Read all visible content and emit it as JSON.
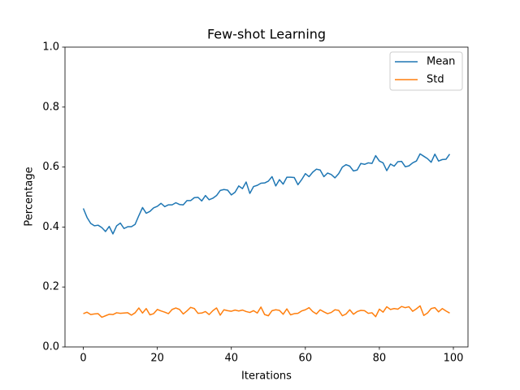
{
  "chart_data": {
    "type": "line",
    "title": "Few-shot Learning",
    "x_label": "Iterations",
    "y_label": "Percentage",
    "x": [
      0,
      1,
      2,
      3,
      4,
      5,
      6,
      7,
      8,
      9,
      10,
      11,
      12,
      13,
      14,
      15,
      16,
      17,
      18,
      19,
      20,
      21,
      22,
      23,
      24,
      25,
      26,
      27,
      28,
      29,
      30,
      31,
      32,
      33,
      34,
      35,
      36,
      37,
      38,
      39,
      40,
      41,
      42,
      43,
      44,
      45,
      46,
      47,
      48,
      49,
      50,
      51,
      52,
      53,
      54,
      55,
      56,
      57,
      58,
      59,
      60,
      61,
      62,
      63,
      64,
      65,
      66,
      67,
      68,
      69,
      70,
      71,
      72,
      73,
      74,
      75,
      76,
      77,
      78,
      79,
      80,
      81,
      82,
      83,
      84,
      85,
      86,
      87,
      88,
      89,
      90,
      91,
      92,
      93,
      94,
      95,
      96,
      97,
      98,
      99
    ],
    "series": [
      {
        "name": "Mean",
        "color": "#1f77b4",
        "values": [
          0.462,
          0.432,
          0.412,
          0.404,
          0.406,
          0.398,
          0.385,
          0.402,
          0.377,
          0.404,
          0.413,
          0.395,
          0.401,
          0.401,
          0.409,
          0.438,
          0.465,
          0.446,
          0.452,
          0.464,
          0.469,
          0.479,
          0.468,
          0.474,
          0.474,
          0.481,
          0.475,
          0.474,
          0.488,
          0.488,
          0.498,
          0.499,
          0.487,
          0.505,
          0.491,
          0.496,
          0.505,
          0.522,
          0.525,
          0.523,
          0.507,
          0.516,
          0.537,
          0.528,
          0.55,
          0.512,
          0.535,
          0.539,
          0.546,
          0.547,
          0.553,
          0.568,
          0.537,
          0.558,
          0.543,
          0.566,
          0.566,
          0.565,
          0.541,
          0.558,
          0.578,
          0.568,
          0.583,
          0.593,
          0.59,
          0.568,
          0.58,
          0.575,
          0.564,
          0.578,
          0.6,
          0.608,
          0.603,
          0.587,
          0.59,
          0.612,
          0.609,
          0.614,
          0.612,
          0.638,
          0.62,
          0.614,
          0.588,
          0.61,
          0.603,
          0.618,
          0.619,
          0.601,
          0.604,
          0.614,
          0.62,
          0.644,
          0.636,
          0.628,
          0.616,
          0.643,
          0.62,
          0.625,
          0.626,
          0.643
        ]
      },
      {
        "name": "Std",
        "color": "#ff7f0e",
        "values": [
          0.111,
          0.116,
          0.108,
          0.11,
          0.111,
          0.099,
          0.104,
          0.109,
          0.108,
          0.114,
          0.112,
          0.113,
          0.114,
          0.106,
          0.114,
          0.13,
          0.113,
          0.128,
          0.107,
          0.111,
          0.125,
          0.12,
          0.116,
          0.111,
          0.125,
          0.13,
          0.125,
          0.11,
          0.12,
          0.132,
          0.128,
          0.112,
          0.113,
          0.118,
          0.108,
          0.121,
          0.13,
          0.106,
          0.124,
          0.121,
          0.119,
          0.123,
          0.12,
          0.123,
          0.118,
          0.115,
          0.121,
          0.113,
          0.133,
          0.108,
          0.104,
          0.121,
          0.124,
          0.122,
          0.109,
          0.127,
          0.107,
          0.111,
          0.112,
          0.12,
          0.124,
          0.131,
          0.118,
          0.11,
          0.124,
          0.117,
          0.111,
          0.115,
          0.124,
          0.122,
          0.104,
          0.11,
          0.124,
          0.109,
          0.118,
          0.122,
          0.121,
          0.112,
          0.114,
          0.101,
          0.126,
          0.116,
          0.134,
          0.125,
          0.128,
          0.126,
          0.135,
          0.131,
          0.134,
          0.119,
          0.127,
          0.137,
          0.105,
          0.113,
          0.128,
          0.131,
          0.117,
          0.128,
          0.12,
          0.113
        ]
      }
    ],
    "xlim": [
      -4.95,
      103.95
    ],
    "xticks": [
      0,
      20,
      40,
      60,
      80,
      100
    ],
    "ylim": [
      0,
      1
    ],
    "yticks": [
      {
        "value": 0,
        "label": "0.0"
      },
      0.2,
      0.4,
      0.6,
      0.8,
      {
        "value": 1,
        "label": "1.0"
      }
    ],
    "legend": "upper right"
  }
}
